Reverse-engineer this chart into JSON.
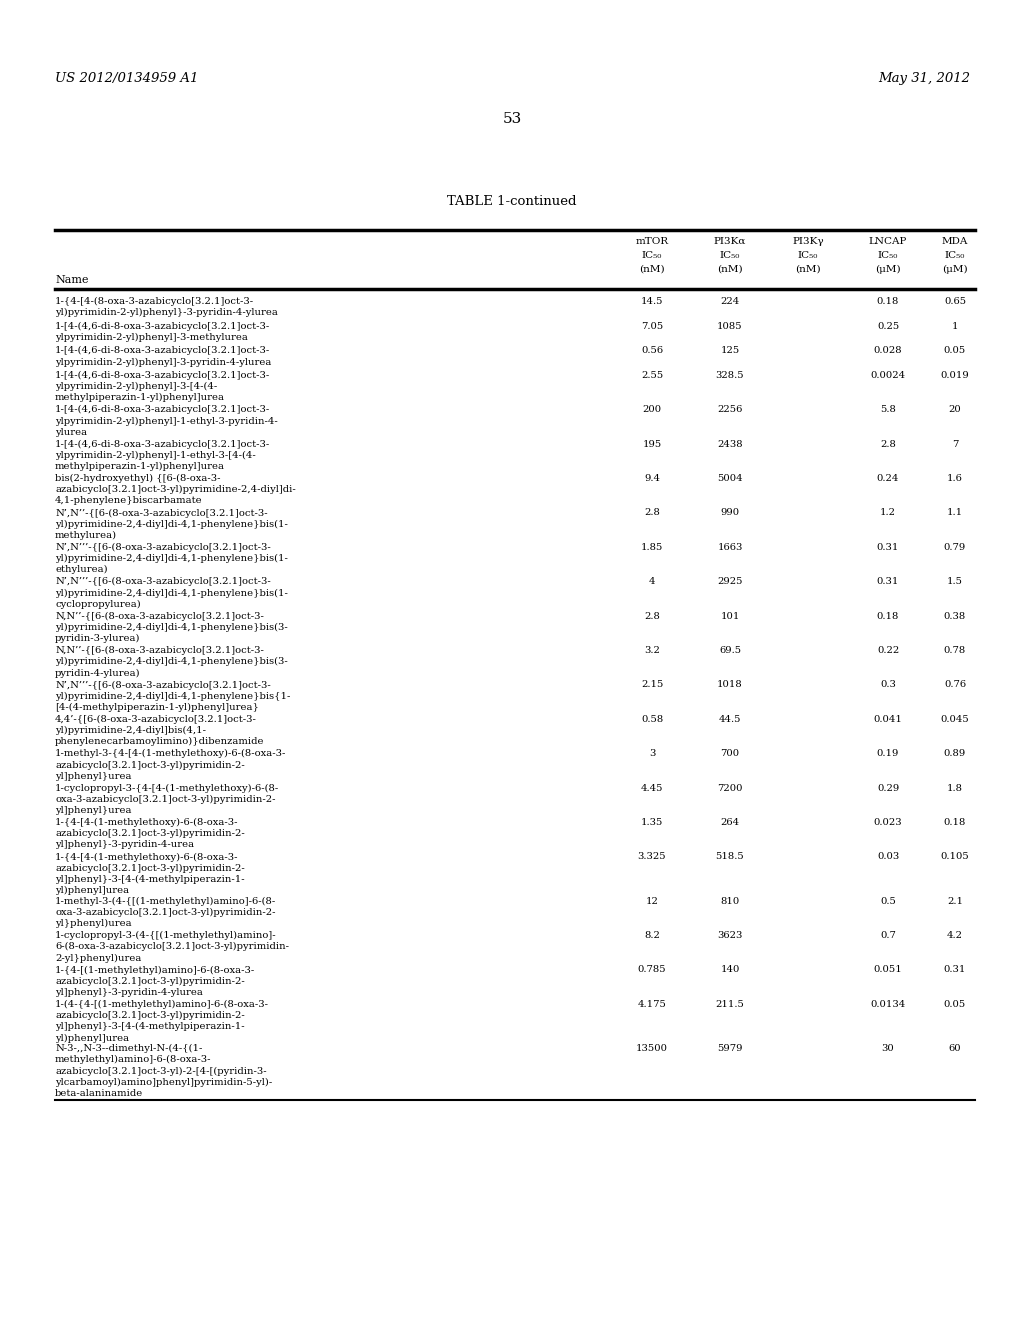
{
  "header_left": "US 2012/0134959 A1",
  "header_right": "May 31, 2012",
  "page_number": "53",
  "table_title": "TABLE 1-continued",
  "rows": [
    [
      "1-{4-[4-(8-oxa-3-azabicyclo[3.2.1]oct-3-\nyl)pyrimidin-2-yl)phenyl}-3-pyridin-4-ylurea",
      "14.5",
      "224",
      "",
      "0.18",
      "0.65"
    ],
    [
      "1-[4-(4,6-di-8-oxa-3-azabicyclo[3.2.1]oct-3-\nylpyrimidin-2-yl)phenyl]-3-methylurea",
      "7.05",
      "1085",
      "",
      "0.25",
      "1"
    ],
    [
      "1-[4-(4,6-di-8-oxa-3-azabicyclo[3.2.1]oct-3-\nylpyrimidin-2-yl)phenyl]-3-pyridin-4-ylurea",
      "0.56",
      "125",
      "",
      "0.028",
      "0.05"
    ],
    [
      "1-[4-(4,6-di-8-oxa-3-azabicyclo[3.2.1]oct-3-\nylpyrimidin-2-yl)phenyl]-3-[4-(4-\nmethylpiperazin-1-yl)phenyl]urea",
      "2.55",
      "328.5",
      "",
      "0.0024",
      "0.019"
    ],
    [
      "1-[4-(4,6-di-8-oxa-3-azabicyclo[3.2.1]oct-3-\nylpyrimidin-2-yl)phenyl]-1-ethyl-3-pyridin-4-\nylurea",
      "200",
      "2256",
      "",
      "5.8",
      "20"
    ],
    [
      "1-[4-(4,6-di-8-oxa-3-azabicyclo[3.2.1]oct-3-\nylpyrimidin-2-yl)phenyl]-1-ethyl-3-[4-(4-\nmethylpiperazin-1-yl)phenyl]urea",
      "195",
      "2438",
      "",
      "2.8",
      "7"
    ],
    [
      "bis(2-hydroxyethyl) {[6-(8-oxa-3-\nazabicyclo[3.2.1]oct-3-yl)pyrimidine-2,4-diyl]di-\n4,1-phenylene}biscarbamate",
      "9.4",
      "5004",
      "",
      "0.24",
      "1.6"
    ],
    [
      "N’,N’’-{[6-(8-oxa-3-azabicyclo[3.2.1]oct-3-\nyl)pyrimidine-2,4-diyl]di-4,1-phenylene}bis(1-\nmethylurea)",
      "2.8",
      "990",
      "",
      "1.2",
      "1.1"
    ],
    [
      "N’,N’’’-{[6-(8-oxa-3-azabicyclo[3.2.1]oct-3-\nyl)pyrimidine-2,4-diyl]di-4,1-phenylene}bis(1-\nethylurea)",
      "1.85",
      "1663",
      "",
      "0.31",
      "0.79"
    ],
    [
      "N’,N’’’-{[6-(8-oxa-3-azabicyclo[3.2.1]oct-3-\nyl)pyrimidine-2,4-diyl]di-4,1-phenylene}bis(1-\ncyclopropylurea)",
      "4",
      "2925",
      "",
      "0.31",
      "1.5"
    ],
    [
      "N,N’’-{[6-(8-oxa-3-azabicyclo[3.2.1]oct-3-\nyl)pyrimidine-2,4-diyl]di-4,1-phenylene}bis(3-\npyridin-3-ylurea)",
      "2.8",
      "101",
      "",
      "0.18",
      "0.38"
    ],
    [
      "N,N’’-{[6-(8-oxa-3-azabicyclo[3.2.1]oct-3-\nyl)pyrimidine-2,4-diyl]di-4,1-phenylene}bis(3-\npyridin-4-ylurea)",
      "3.2",
      "69.5",
      "",
      "0.22",
      "0.78"
    ],
    [
      "N’,N’’’-{[6-(8-oxa-3-azabicyclo[3.2.1]oct-3-\nyl)pyrimidine-2,4-diyl]di-4,1-phenylene}bis{1-\n[4-(4-methylpiperazin-1-yl)phenyl]urea}",
      "2.15",
      "1018",
      "",
      "0.3",
      "0.76"
    ],
    [
      "4,4’-{[6-(8-oxa-3-azabicyclo[3.2.1]oct-3-\nyl)pyrimidine-2,4-diyl]bis(4,1-\nphenylenecarbamoylimino)}dibenzamide",
      "0.58",
      "44.5",
      "",
      "0.041",
      "0.045"
    ],
    [
      "1-methyl-3-{4-[4-(1-methylethoxy)-6-(8-oxa-3-\nazabicyclo[3.2.1]oct-3-yl)pyrimidin-2-\nyl]phenyl}urea",
      "3",
      "700",
      "",
      "0.19",
      "0.89"
    ],
    [
      "1-cyclopropyl-3-{4-[4-(1-methylethoxy)-6-(8-\noxa-3-azabicyclo[3.2.1]oct-3-yl)pyrimidin-2-\nyl]phenyl}urea",
      "4.45",
      "7200",
      "",
      "0.29",
      "1.8"
    ],
    [
      "1-{4-[4-(1-methylethoxy)-6-(8-oxa-3-\nazabicyclo[3.2.1]oct-3-yl)pyrimidin-2-\nyl]phenyl}-3-pyridin-4-urea",
      "1.35",
      "264",
      "",
      "0.023",
      "0.18"
    ],
    [
      "1-{4-[4-(1-methylethoxy)-6-(8-oxa-3-\nazabicyclo[3.2.1]oct-3-yl)pyrimidin-2-\nyl]phenyl}-3-[4-(4-methylpiperazin-1-\nyl)phenyl]urea",
      "3.325",
      "518.5",
      "",
      "0.03",
      "0.105"
    ],
    [
      "1-methyl-3-(4-{[(1-methylethyl)amino]-6-(8-\noxa-3-azabicyclo[3.2.1]oct-3-yl)pyrimidin-2-\nyl}phenyl)urea",
      "12",
      "810",
      "",
      "0.5",
      "2.1"
    ],
    [
      "1-cyclopropyl-3-(4-{[(1-methylethyl)amino]-\n6-(8-oxa-3-azabicyclo[3.2.1]oct-3-yl)pyrimidin-\n2-yl}phenyl)urea",
      "8.2",
      "3623",
      "",
      "0.7",
      "4.2"
    ],
    [
      "1-{4-[(1-methylethyl)amino]-6-(8-oxa-3-\nazabicyclo[3.2.1]oct-3-yl)pyrimidin-2-\nyl]phenyl}-3-pyridin-4-ylurea",
      "0.785",
      "140",
      "",
      "0.051",
      "0.31"
    ],
    [
      "1-(4-{4-[(1-methylethyl)amino]-6-(8-oxa-3-\nazabicyclo[3.2.1]oct-3-yl)pyrimidin-2-\nyl]phenyl}-3-[4-(4-methylpiperazin-1-\nyl)phenyl]urea",
      "4.175",
      "211.5",
      "",
      "0.0134",
      "0.05"
    ],
    [
      "N-3-,,N-3--dimethyl-N-(4-{(1-\nmethylethyl)amino]-6-(8-oxa-3-\nazabicyclo[3.2.1]oct-3-yl)-2-[4-[(pyridin-3-\nylcarbamoyl)amino]phenyl]pyrimidin-5-yl)-\nbeta-alaninamide",
      "13500",
      "5979",
      "",
      "30",
      "60"
    ]
  ]
}
